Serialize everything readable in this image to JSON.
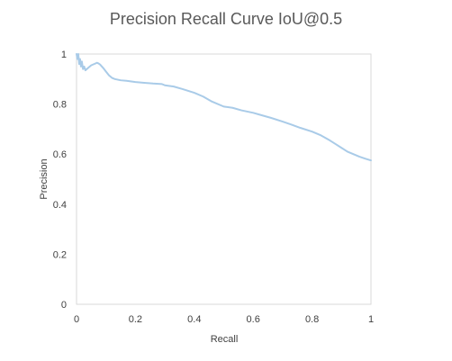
{
  "chart_data": {
    "type": "line",
    "title": "Precision Recall Curve IoU@0.5",
    "xlabel": "Recall",
    "ylabel": "Precision",
    "xlim": [
      0,
      1
    ],
    "ylim": [
      0,
      1
    ],
    "x_ticks": [
      "0",
      "0.2",
      "0.4",
      "0.6",
      "0.8",
      "1"
    ],
    "x_tick_values": [
      0,
      0.2,
      0.4,
      0.6,
      0.8,
      1
    ],
    "y_ticks": [
      "0",
      "0.2",
      "0.4",
      "0.6",
      "0.8",
      "1"
    ],
    "y_tick_values": [
      0,
      0.2,
      0.4,
      0.6,
      0.8,
      1
    ],
    "grid": false,
    "legend": "none",
    "series": [
      {
        "color": "#a9cbe8",
        "x": [
          0,
          0.003,
          0.006,
          0.009,
          0.012,
          0.015,
          0.018,
          0.022,
          0.026,
          0.03,
          0.035,
          0.04,
          0.05,
          0.06,
          0.07,
          0.075,
          0.08,
          0.09,
          0.1,
          0.11,
          0.12,
          0.13,
          0.15,
          0.17,
          0.2,
          0.23,
          0.26,
          0.29,
          0.3,
          0.33,
          0.36,
          0.4,
          0.43,
          0.46,
          0.5,
          0.53,
          0.56,
          0.6,
          0.63,
          0.66,
          0.7,
          0.73,
          0.76,
          0.8,
          0.83,
          0.86,
          0.88,
          0.9,
          0.92,
          0.94,
          0.96,
          0.98,
          1.0
        ],
        "y": [
          1.0,
          0.98,
          1.0,
          0.96,
          0.98,
          0.95,
          0.97,
          0.94,
          0.95,
          0.935,
          0.94,
          0.945,
          0.955,
          0.96,
          0.965,
          0.962,
          0.958,
          0.945,
          0.93,
          0.915,
          0.905,
          0.9,
          0.895,
          0.893,
          0.888,
          0.885,
          0.882,
          0.88,
          0.875,
          0.87,
          0.86,
          0.845,
          0.83,
          0.81,
          0.79,
          0.785,
          0.775,
          0.765,
          0.755,
          0.745,
          0.73,
          0.718,
          0.705,
          0.69,
          0.675,
          0.655,
          0.64,
          0.625,
          0.61,
          0.6,
          0.59,
          0.582,
          0.575
        ]
      }
    ]
  }
}
